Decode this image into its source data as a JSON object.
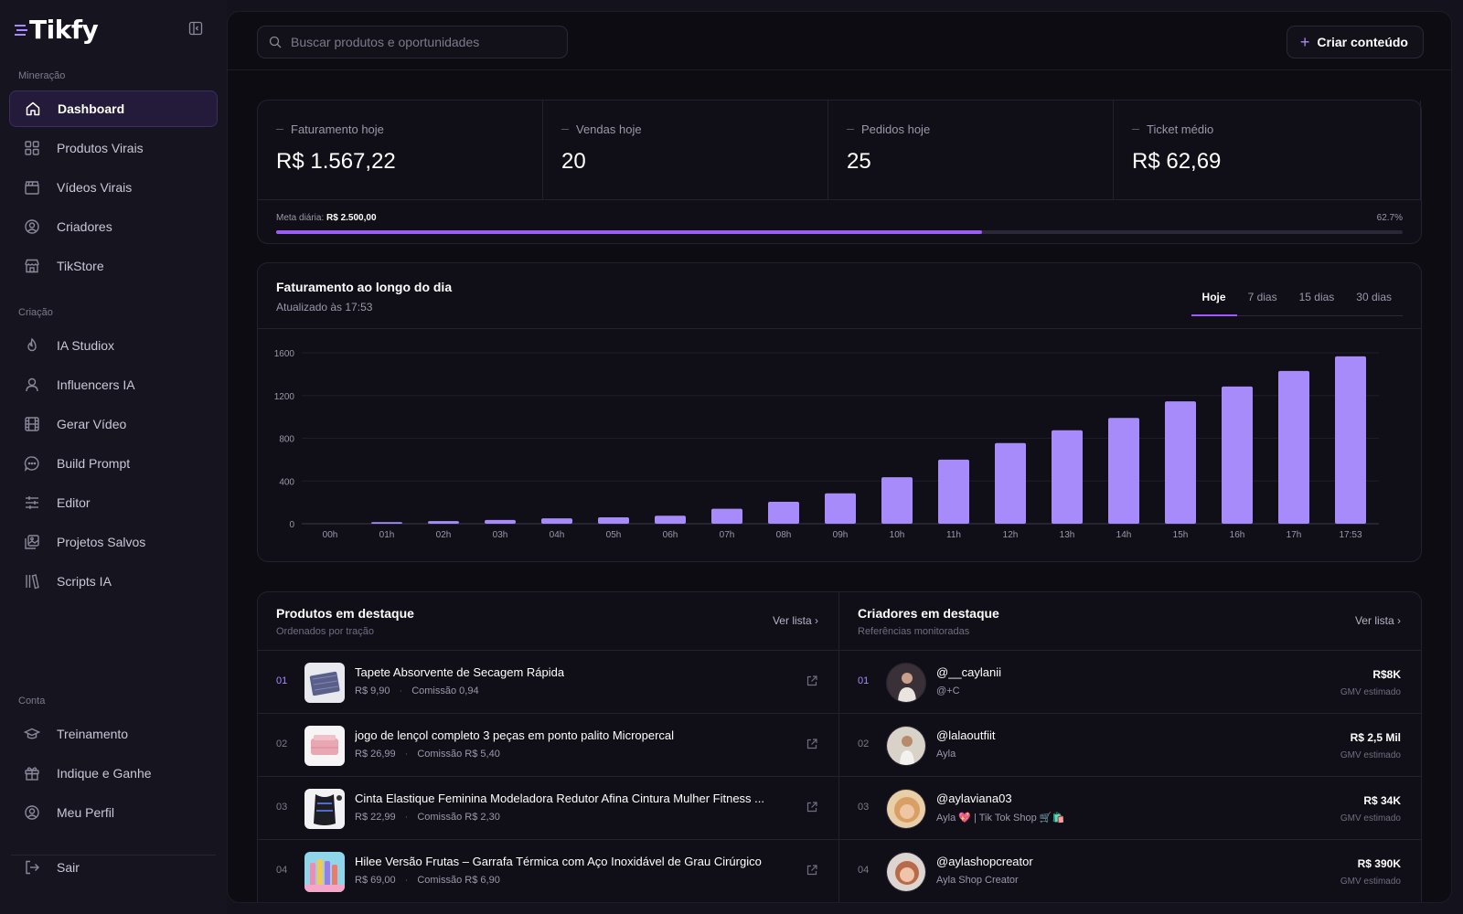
{
  "brand": {
    "name": "Tikfy"
  },
  "sidebar": {
    "sections": {
      "mineracao": "Mineração",
      "criacao": "Criação",
      "conta": "Conta"
    },
    "mineracao": [
      {
        "label": "Dashboard",
        "icon": "home-icon"
      },
      {
        "label": "Produtos Virais",
        "icon": "grid-icon"
      },
      {
        "label": "Vídeos Virais",
        "icon": "clapperboard-icon"
      },
      {
        "label": "Criadores",
        "icon": "user-circle-icon"
      },
      {
        "label": "TikStore",
        "icon": "store-icon"
      }
    ],
    "criacao": [
      {
        "label": "IA Studiox",
        "icon": "flame-icon"
      },
      {
        "label": "Influencers IA",
        "icon": "user-icon"
      },
      {
        "label": "Gerar Vídeo",
        "icon": "film-icon"
      },
      {
        "label": "Build Prompt",
        "icon": "chat-icon"
      },
      {
        "label": "Editor",
        "icon": "sliders-icon"
      },
      {
        "label": "Projetos Salvos",
        "icon": "images-icon"
      },
      {
        "label": "Scripts IA",
        "icon": "library-icon"
      }
    ],
    "conta": [
      {
        "label": "Treinamento",
        "icon": "graduation-cap-icon"
      },
      {
        "label": "Indique e Ganhe",
        "icon": "gift-icon"
      },
      {
        "label": "Meu Perfil",
        "icon": "user-circle-icon"
      }
    ],
    "logout": "Sair"
  },
  "topbar": {
    "search_placeholder": "Buscar produtos e oportunidades",
    "create_label": "Criar conteúdo"
  },
  "kpis": [
    {
      "label": "Faturamento hoje",
      "value": "R$ 1.567,22"
    },
    {
      "label": "Vendas hoje",
      "value": "20"
    },
    {
      "label": "Pedidos hoje",
      "value": "25"
    },
    {
      "label": "Ticket médio",
      "value": "R$ 62,69"
    }
  ],
  "goal": {
    "label": "Meta diária:",
    "value": "R$ 2.500,00",
    "percent_text": "62.7%",
    "progress": 0.627
  },
  "chart": {
    "title": "Faturamento ao longo do dia",
    "subtitle": "Atualizado às 17:53",
    "tabs": [
      "Hoje",
      "7 dias",
      "15 dias",
      "30 dias"
    ],
    "active_tab": 0
  },
  "chart_data": {
    "type": "bar",
    "categories": [
      "00h",
      "01h",
      "02h",
      "03h",
      "04h",
      "05h",
      "06h",
      "07h",
      "08h",
      "09h",
      "10h",
      "11h",
      "12h",
      "13h",
      "14h",
      "15h",
      "16h",
      "17h",
      "17:53"
    ],
    "values": [
      0,
      15,
      25,
      35,
      50,
      60,
      75,
      140,
      205,
      285,
      435,
      600,
      755,
      875,
      990,
      1145,
      1285,
      1430,
      1567
    ],
    "ylim": [
      0,
      1600
    ],
    "yticks": [
      0,
      400,
      800,
      1200,
      1600
    ],
    "grid": true,
    "color": "#a78bfa"
  },
  "products": {
    "title": "Produtos em destaque",
    "subtitle": "Ordenados por tração",
    "link": "Ver lista",
    "items": [
      {
        "rank": "01",
        "name": "Tapete Absorvente de Secagem Rápida",
        "price": "R$ 9,90",
        "commission": "Comissão 0,94"
      },
      {
        "rank": "02",
        "name": "jogo de lençol completo 3 peças em ponto palito Micropercal",
        "price": "R$ 26,99",
        "commission": "Comissão R$ 5,40"
      },
      {
        "rank": "03",
        "name": "Cinta Elastique Feminina Modeladora Redutor Afina Cintura Mulher Fitness ...",
        "price": "R$ 22,99",
        "commission": "Comissão R$ 2,30"
      },
      {
        "rank": "04",
        "name": "Hilee Versão Frutas – Garrafa Térmica com Aço Inoxidável de Grau Cirúrgico",
        "price": "R$ 69,00",
        "commission": "Comissão R$ 6,90"
      }
    ]
  },
  "creators": {
    "title": "Criadores em destaque",
    "subtitle": "Referências monitoradas",
    "link": "Ver lista",
    "gmv_label": "GMV estimado",
    "items": [
      {
        "rank": "01",
        "handle": "@__caylanii",
        "name": "@+C",
        "gmv": "R$8K"
      },
      {
        "rank": "02",
        "handle": "@lalaoutfiit",
        "name": "Ayla",
        "gmv": "R$ 2,5 Mil"
      },
      {
        "rank": "03",
        "handle": "@aylaviana03",
        "name": "Ayla 💖 | Tik Tok Shop 🛒🛍️",
        "gmv": "R$ 34K"
      },
      {
        "rank": "04",
        "handle": "@aylashopcreator",
        "name": "Ayla Shop Creator",
        "gmv": "R$ 390K"
      }
    ]
  }
}
